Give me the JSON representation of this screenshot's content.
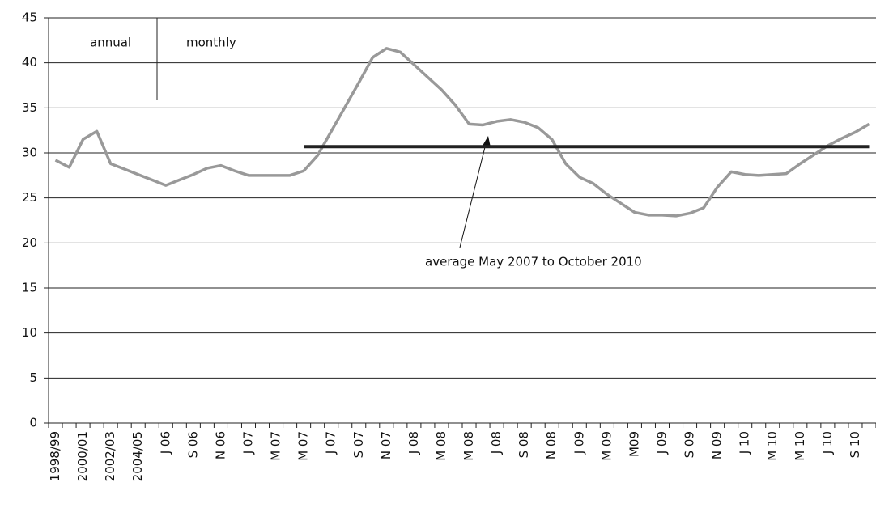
{
  "chart_data": {
    "type": "line",
    "categories": [
      "1998/99",
      null,
      "2000/01",
      null,
      "2002/03",
      null,
      "2004/05",
      null,
      "J 06",
      null,
      "S 06",
      null,
      "N 06",
      null,
      "J 07",
      null,
      "M 07",
      null,
      "M 07",
      null,
      "J 07",
      null,
      "S 07",
      null,
      "N 07",
      null,
      "J 08",
      null,
      "M 08",
      null,
      "M 08",
      null,
      "J 08",
      null,
      "S 08",
      null,
      "N 08",
      null,
      "J 09",
      null,
      "M 09",
      null,
      "M09",
      null,
      "J 09",
      null,
      "S 09",
      null,
      "N 09",
      null,
      "J 10",
      null,
      "M 10",
      null,
      "M 10",
      null,
      "J 10",
      null,
      "S 10",
      null
    ],
    "series": [
      {
        "color": "#999999",
        "values": [
          29.2,
          28.4,
          31.5,
          32.4,
          28.8,
          28.2,
          27.6,
          27.0,
          26.4,
          27.0,
          27.6,
          28.3,
          28.6,
          28.0,
          27.5,
          27.5,
          27.5,
          27.5,
          28.0,
          29.7,
          32.4,
          35.1,
          37.8,
          40.6,
          41.6,
          41.2,
          39.8,
          38.4,
          37.0,
          35.3,
          33.2,
          33.1,
          33.5,
          33.7,
          33.4,
          32.8,
          31.5,
          28.8,
          27.3,
          26.6,
          25.4,
          24.4,
          23.4,
          23.1,
          23.1,
          23.0,
          23.3,
          23.9,
          26.2,
          27.9,
          27.6,
          27.5,
          27.6,
          27.7,
          28.8,
          29.8,
          30.8,
          31.6,
          32.3,
          33.2
        ]
      },
      {
        "color": "#222222",
        "values": [
          null,
          null,
          null,
          null,
          null,
          null,
          null,
          null,
          null,
          null,
          null,
          null,
          null,
          null,
          null,
          null,
          null,
          null,
          30.7,
          30.7,
          30.7,
          30.7,
          30.7,
          30.7,
          30.7,
          30.7,
          30.7,
          30.7,
          30.7,
          30.7,
          30.7,
          30.7,
          30.7,
          30.7,
          30.7,
          30.7,
          30.7,
          30.7,
          30.7,
          30.7,
          30.7,
          30.7,
          30.7,
          30.7,
          30.7,
          30.7,
          30.7,
          30.7,
          30.7,
          30.7,
          30.7,
          30.7,
          30.7,
          30.7,
          30.7,
          30.7,
          30.7,
          30.7,
          30.7,
          30.7
        ]
      }
    ],
    "annotations": [
      "annual",
      "monthly",
      "average May 2007 to October 2010"
    ],
    "ylim": [
      0,
      45
    ],
    "yticks": [
      0,
      5,
      10,
      15,
      20,
      25,
      30,
      35,
      40,
      45
    ],
    "grid": true
  }
}
